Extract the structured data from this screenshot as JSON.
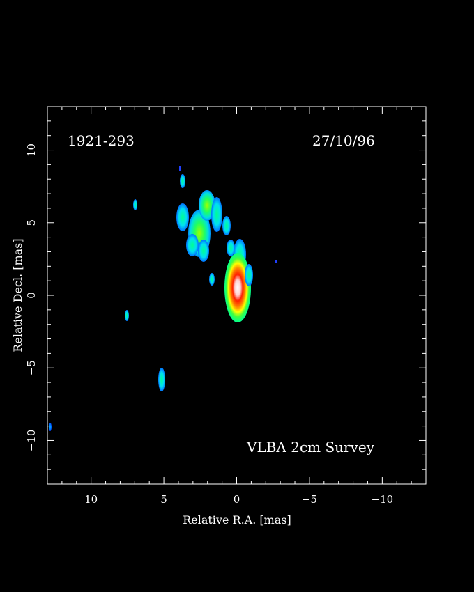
{
  "image": {
    "source_name": "1921-293",
    "date": "27/10/96",
    "survey": "VLBA 2cm Survey",
    "xlabel": "Relative R.A. [mas]",
    "ylabel": "Relative Decl. [mas]",
    "x_range": [
      13,
      -13
    ],
    "y_range": [
      -13,
      13
    ],
    "x_ticks": [
      {
        "value": 10,
        "label": "10"
      },
      {
        "value": 5,
        "label": "5"
      },
      {
        "value": 0,
        "label": "0"
      },
      {
        "value": -5,
        "label": "−5"
      },
      {
        "value": -10,
        "label": "−10"
      }
    ],
    "y_ticks": [
      {
        "value": 10,
        "label": "10"
      },
      {
        "value": 5,
        "label": "5"
      },
      {
        "value": 0,
        "label": "0"
      },
      {
        "value": -5,
        "label": "−5"
      },
      {
        "value": -10,
        "label": "−10"
      }
    ],
    "background": "#000000",
    "colormap": [
      "#0000cc",
      "#0080ff",
      "#00e0ff",
      "#00ff80",
      "#80ff00",
      "#ffff00",
      "#ff8000",
      "#ff0000",
      "#ffffff"
    ]
  }
}
